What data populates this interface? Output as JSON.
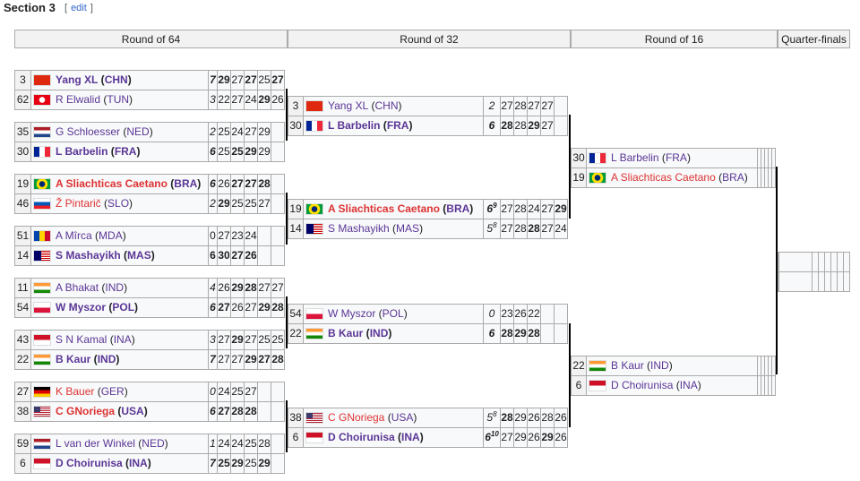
{
  "section": {
    "title": "Section 3",
    "edit_open": "[",
    "edit_label": "edit",
    "edit_close": "]"
  },
  "rounds": [
    "Round of 64",
    "Round of 32",
    "Round of 16",
    "Quarter-finals"
  ],
  "colors": {
    "link": "#5a3696",
    "red_link": "#d33333",
    "border": "#aaaaaa",
    "cell_bg": "#f8f9fa"
  },
  "round64": [
    [
      {
        "seed": "3",
        "flag": "CHN",
        "name": "Yang XL",
        "cc": "CHN",
        "win": true,
        "set": "7",
        "scores": [
          [
            "29",
            1
          ],
          [
            "27",
            0
          ],
          [
            "27",
            1
          ],
          [
            "25",
            0
          ],
          [
            "27",
            1
          ]
        ]
      },
      {
        "seed": "62",
        "flag": "TUN",
        "name": "R Elwalid",
        "cc": "TUN",
        "set": "3",
        "scores": [
          [
            "22",
            0
          ],
          [
            "27",
            0
          ],
          [
            "24",
            0
          ],
          [
            "29",
            1
          ],
          [
            "26",
            0
          ]
        ]
      }
    ],
    [
      {
        "seed": "35",
        "flag": "NED",
        "name": "G Schloesser",
        "cc": "NED",
        "set": "2",
        "scores": [
          [
            "25",
            0
          ],
          [
            "24",
            0
          ],
          [
            "27",
            0
          ],
          [
            "29",
            0
          ],
          [
            "",
            0
          ]
        ]
      },
      {
        "seed": "30",
        "flag": "FRA",
        "name": "L Barbelin",
        "cc": "FRA",
        "win": true,
        "set": "6",
        "scores": [
          [
            "25",
            0
          ],
          [
            "25",
            1
          ],
          [
            "29",
            1
          ],
          [
            "29",
            0
          ],
          [
            "",
            0
          ]
        ]
      }
    ],
    [
      {
        "seed": "19",
        "flag": "BRA",
        "name": "A Sliachticas Caetano",
        "cc": "BRA",
        "win": true,
        "red": true,
        "set": "6",
        "scores": [
          [
            "26",
            0
          ],
          [
            "27",
            1
          ],
          [
            "27",
            1
          ],
          [
            "28",
            1
          ],
          [
            "",
            0
          ]
        ]
      },
      {
        "seed": "46",
        "flag": "SLO",
        "name": "Ž Pintarič",
        "cc": "SLO",
        "red": true,
        "set": "2",
        "scores": [
          [
            "29",
            1
          ],
          [
            "25",
            0
          ],
          [
            "25",
            0
          ],
          [
            "27",
            0
          ],
          [
            "",
            0
          ]
        ]
      }
    ],
    [
      {
        "seed": "51",
        "flag": "MDA",
        "name": "A Mîrca",
        "cc": "MDA",
        "set": "0",
        "upright": true,
        "scores": [
          [
            "27",
            0
          ],
          [
            "23",
            0
          ],
          [
            "24",
            0
          ],
          [
            "",
            0
          ],
          [
            "",
            0
          ]
        ]
      },
      {
        "seed": "14",
        "flag": "MAS",
        "name": "S Mashayikh",
        "cc": "MAS",
        "win": true,
        "set": "6",
        "upright": true,
        "scores": [
          [
            "30",
            1
          ],
          [
            "27",
            1
          ],
          [
            "26",
            1
          ],
          [
            "",
            0
          ],
          [
            "",
            0
          ]
        ]
      }
    ],
    [
      {
        "seed": "11",
        "flag": "IND",
        "name": "A Bhakat",
        "cc": "IND",
        "set": "4",
        "scores": [
          [
            "26",
            0
          ],
          [
            "29",
            1
          ],
          [
            "28",
            1
          ],
          [
            "27",
            0
          ],
          [
            "27",
            0
          ]
        ]
      },
      {
        "seed": "54",
        "flag": "POL",
        "name": "W Myszor",
        "cc": "POL",
        "win": true,
        "set": "6",
        "scores": [
          [
            "27",
            1
          ],
          [
            "26",
            0
          ],
          [
            "27",
            0
          ],
          [
            "29",
            1
          ],
          [
            "28",
            1
          ]
        ]
      }
    ],
    [
      {
        "seed": "43",
        "flag": "INA",
        "name": "S N Kamal",
        "cc": "INA",
        "set": "3",
        "scores": [
          [
            "27",
            0
          ],
          [
            "29",
            1
          ],
          [
            "27",
            0
          ],
          [
            "25",
            0
          ],
          [
            "25",
            0
          ]
        ]
      },
      {
        "seed": "22",
        "flag": "IND",
        "name": "B Kaur",
        "cc": "IND",
        "win": true,
        "set": "7",
        "scores": [
          [
            "27",
            0
          ],
          [
            "27",
            0
          ],
          [
            "29",
            1
          ],
          [
            "27",
            1
          ],
          [
            "28",
            1
          ]
        ]
      }
    ],
    [
      {
        "seed": "27",
        "flag": "GER",
        "name": "K Bauer",
        "cc": "GER",
        "red": true,
        "set": "0",
        "scores": [
          [
            "24",
            0
          ],
          [
            "25",
            0
          ],
          [
            "27",
            0
          ],
          [
            "",
            0
          ],
          [
            "",
            0
          ]
        ]
      },
      {
        "seed": "38",
        "flag": "USA",
        "name": "C GNoriega",
        "cc": "USA",
        "win": true,
        "red": true,
        "set": "6",
        "scores": [
          [
            "27",
            1
          ],
          [
            "28",
            1
          ],
          [
            "28",
            1
          ],
          [
            "",
            0
          ],
          [
            "",
            0
          ]
        ]
      }
    ],
    [
      {
        "seed": "59",
        "flag": "NED",
        "name": "L van der Winkel",
        "cc": "NED",
        "set": "1",
        "scores": [
          [
            "24",
            0
          ],
          [
            "24",
            0
          ],
          [
            "25",
            0
          ],
          [
            "28",
            0
          ],
          [
            "",
            0
          ]
        ]
      },
      {
        "seed": "6",
        "flag": "INA",
        "name": "D Choirunisa",
        "cc": "INA",
        "win": true,
        "set": "7",
        "scores": [
          [
            "25",
            1
          ],
          [
            "29",
            1
          ],
          [
            "25",
            0
          ],
          [
            "29",
            1
          ],
          [
            "",
            0
          ]
        ]
      }
    ]
  ],
  "round32": [
    [
      {
        "seed": "3",
        "flag": "CHN",
        "name": "Yang XL",
        "cc": "CHN",
        "set": "2",
        "scores": [
          [
            "27",
            0
          ],
          [
            "28",
            0
          ],
          [
            "27",
            0
          ],
          [
            "27",
            0
          ],
          [
            "",
            0
          ]
        ]
      },
      {
        "seed": "30",
        "flag": "FRA",
        "name": "L Barbelin",
        "cc": "FRA",
        "win": true,
        "set": "6",
        "scores": [
          [
            "28",
            1
          ],
          [
            "28",
            0
          ],
          [
            "29",
            1
          ],
          [
            "27",
            0
          ],
          [
            "",
            0
          ]
        ]
      }
    ],
    [
      {
        "seed": "19",
        "flag": "BRA",
        "name": "A Sliachticas Caetano",
        "cc": "BRA",
        "win": true,
        "red": true,
        "set": "6",
        "sup": "9",
        "scores": [
          [
            "27",
            0
          ],
          [
            "28",
            0
          ],
          [
            "24",
            0
          ],
          [
            "27",
            0
          ],
          [
            "29",
            1
          ]
        ]
      },
      {
        "seed": "14",
        "flag": "MAS",
        "name": "S Mashayikh",
        "cc": "MAS",
        "set": "5",
        "sup": "8",
        "scores": [
          [
            "27",
            0
          ],
          [
            "28",
            0
          ],
          [
            "28",
            1
          ],
          [
            "27",
            0
          ],
          [
            "24",
            0
          ]
        ]
      }
    ],
    [
      {
        "seed": "54",
        "flag": "POL",
        "name": "W Myszor",
        "cc": "POL",
        "set": "0",
        "scores": [
          [
            "23",
            0
          ],
          [
            "26",
            0
          ],
          [
            "22",
            0
          ],
          [
            "",
            0
          ],
          [
            "",
            0
          ]
        ]
      },
      {
        "seed": "22",
        "flag": "IND",
        "name": "B Kaur",
        "cc": "IND",
        "win": true,
        "set": "6",
        "scores": [
          [
            "28",
            1
          ],
          [
            "29",
            1
          ],
          [
            "28",
            1
          ],
          [
            "",
            0
          ],
          [
            "",
            0
          ]
        ]
      }
    ],
    [
      {
        "seed": "38",
        "flag": "USA",
        "name": "C GNoriega",
        "cc": "USA",
        "red": true,
        "set": "5",
        "sup": "8",
        "scores": [
          [
            "28",
            1
          ],
          [
            "29",
            0
          ],
          [
            "26",
            0
          ],
          [
            "28",
            0
          ],
          [
            "26",
            0
          ]
        ]
      },
      {
        "seed": "6",
        "flag": "INA",
        "name": "D Choirunisa",
        "cc": "INA",
        "win": true,
        "set": "6",
        "sup": "10",
        "scores": [
          [
            "27",
            0
          ],
          [
            "29",
            0
          ],
          [
            "26",
            0
          ],
          [
            "29",
            1
          ],
          [
            "26",
            0
          ]
        ]
      }
    ]
  ],
  "round16": [
    [
      {
        "seed": "30",
        "flag": "FRA",
        "name": "L Barbelin",
        "cc": "FRA"
      },
      {
        "seed": "19",
        "flag": "BRA",
        "name": "A Sliachticas Caetano",
        "cc": "BRA",
        "red": true
      }
    ],
    [
      {
        "seed": "22",
        "flag": "IND",
        "name": "B Kaur",
        "cc": "IND"
      },
      {
        "seed": "6",
        "flag": "INA",
        "name": "D Choirunisa",
        "cc": "INA"
      }
    ]
  ],
  "quarterfinals": [
    [
      {},
      {}
    ]
  ]
}
